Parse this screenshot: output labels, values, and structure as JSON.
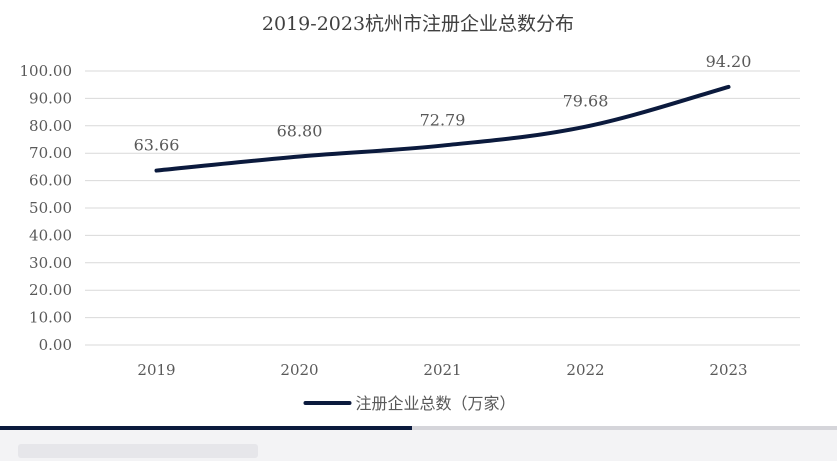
{
  "chart_data": {
    "type": "line",
    "title": "2019-2023杭州市注册企业总数分布",
    "categories": [
      "2019",
      "2020",
      "2021",
      "2022",
      "2023"
    ],
    "series": [
      {
        "name": "注册企业总数（万家）",
        "values": [
          63.66,
          68.8,
          72.79,
          79.68,
          94.2
        ],
        "labels": [
          "63.66",
          "68.80",
          "72.79",
          "79.68",
          "94.20"
        ]
      }
    ],
    "ylim": [
      0,
      100
    ],
    "yticks": [
      "0.00",
      "10.00",
      "20.00",
      "30.00",
      "40.00",
      "50.00",
      "60.00",
      "70.00",
      "80.00",
      "90.00",
      "100.00"
    ],
    "xlabel": "",
    "ylabel": "",
    "grid": true,
    "legend": "bottom-center",
    "colors": {
      "line": "#0b1a3d",
      "grid": "#d9d9d9",
      "text": "#595959",
      "title": "#404040"
    }
  }
}
